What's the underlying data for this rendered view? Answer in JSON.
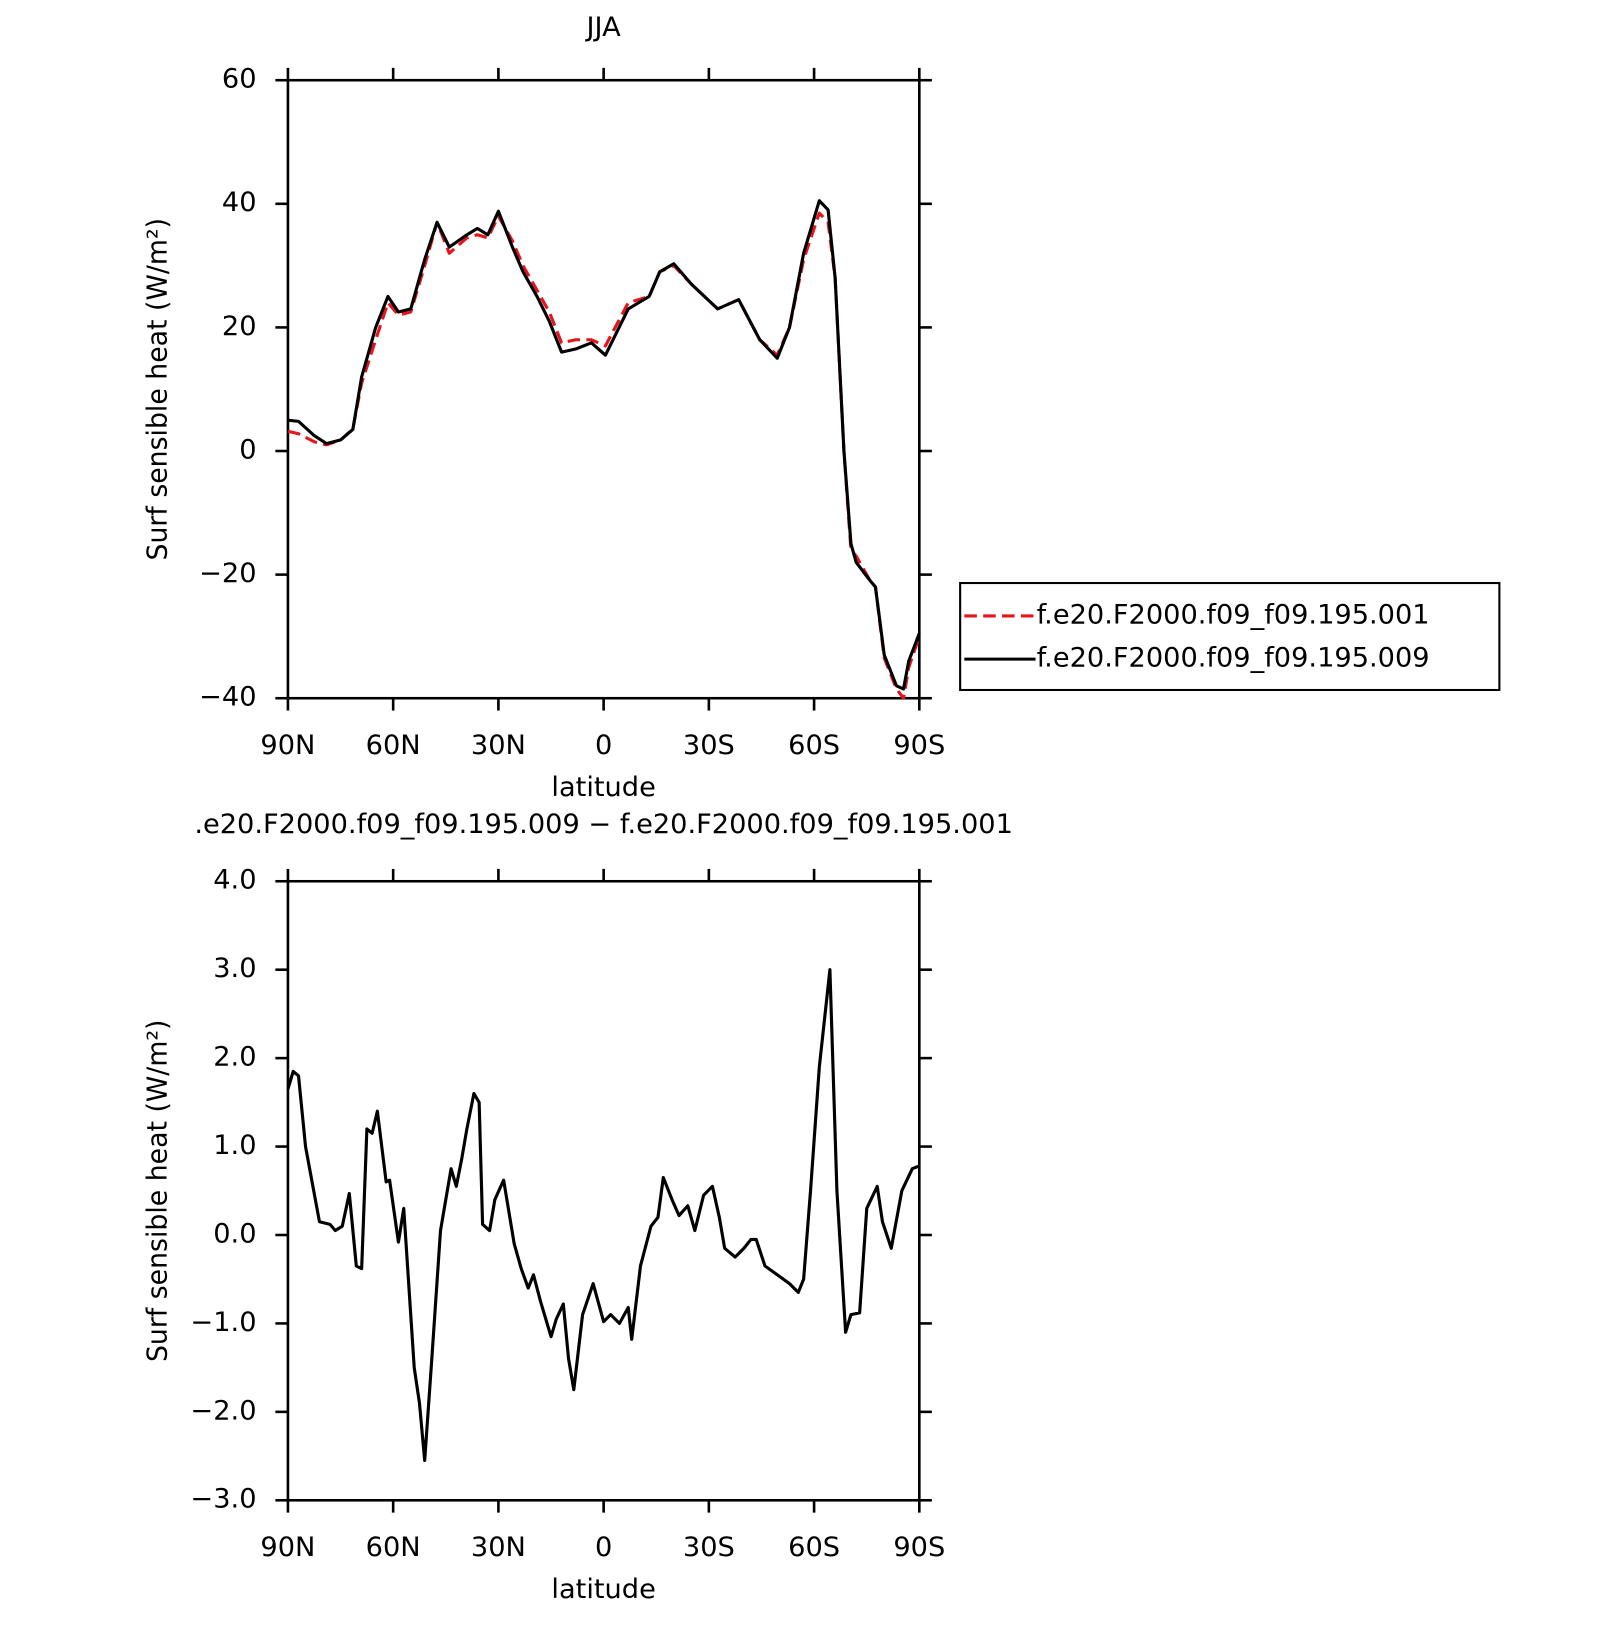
{
  "chart_data": [
    {
      "type": "line",
      "title": "JJA",
      "x_label": "latitude",
      "y_label": "Surf sensible heat (W/m²)",
      "xlim": [
        90,
        -90
      ],
      "ylim": [
        -40,
        60
      ],
      "xticks": [
        {
          "value": 90,
          "label": "90N"
        },
        {
          "value": 60,
          "label": "60N"
        },
        {
          "value": 30,
          "label": "30N"
        },
        0,
        {
          "value": -30,
          "label": "30S"
        },
        {
          "value": -60,
          "label": "60S"
        },
        {
          "value": -90,
          "label": "90S"
        }
      ],
      "yticks": [
        {
          "value": -40,
          "label": "−40"
        },
        {
          "value": -20,
          "label": "−20"
        },
        0,
        20,
        40,
        60
      ],
      "legend": "right",
      "x": [
        90,
        87,
        82.5,
        79,
        75,
        71.5,
        69,
        65,
        61.5,
        58.5,
        55,
        51,
        47.5,
        44,
        39,
        36,
        33,
        30,
        26,
        23,
        19,
        15.5,
        12,
        8,
        3.5,
        -0.5,
        -7,
        -13,
        -16,
        -20,
        -25,
        -32.5,
        -38.5,
        -44.5,
        -49.5,
        -53,
        -57,
        -61.5,
        -64,
        -66,
        -68.5,
        -70.5,
        -72,
        -76,
        -77.5,
        -80,
        -83.5,
        -85.5,
        -87,
        -90
      ],
      "series": [
        {
          "name": "f.e20.F2000.f09_f09.195.001",
          "color": "#e8141b",
          "dashed": true,
          "values": [
            3.2,
            2.8,
            1.5,
            1.0,
            1.8,
            3.6,
            11,
            18,
            24,
            22,
            22.5,
            30,
            37,
            32,
            34.5,
            35,
            34.5,
            38,
            34,
            30,
            26,
            22.5,
            17.5,
            18,
            18,
            17,
            24,
            25,
            29,
            30,
            27,
            23,
            24.5,
            18,
            15.5,
            20,
            31,
            38.5,
            37,
            28,
            0,
            -16,
            -17,
            -21,
            -22,
            -33.5,
            -38.5,
            -40,
            -35,
            -30
          ]
        },
        {
          "name": "f.e20.F2000.f09_f09.195.009",
          "color": "#000000",
          "dashed": false,
          "values": [
            5,
            4.8,
            2.5,
            1.2,
            1.8,
            3.5,
            12,
            20,
            25,
            22.5,
            23,
            31,
            37,
            33,
            35,
            36,
            35,
            38.8,
            33,
            29,
            25,
            21,
            16,
            16.5,
            17.5,
            15.5,
            23,
            25,
            29,
            30.3,
            27,
            23,
            24.5,
            18,
            15,
            20,
            32,
            40.5,
            39,
            28,
            0,
            -15,
            -18,
            -21,
            -22,
            -33,
            -38,
            -38.5,
            -34,
            -29.5
          ]
        }
      ]
    },
    {
      "type": "line",
      "title": ".e20.F2000.f09_f09.195.009 − f.e20.F2000.f09_f09.195.001",
      "x_label": "latitude",
      "y_label": "Surf sensible heat (W/m²)",
      "xlim": [
        90,
        -90
      ],
      "ylim": [
        -3,
        4
      ],
      "xticks": [
        {
          "value": 90,
          "label": "90N"
        },
        {
          "value": 60,
          "label": "60N"
        },
        {
          "value": 30,
          "label": "30N"
        },
        0,
        {
          "value": -30,
          "label": "30S"
        },
        {
          "value": -60,
          "label": "60S"
        },
        {
          "value": -90,
          "label": "90S"
        }
      ],
      "yticks": [
        {
          "value": -3,
          "label": "−3.0"
        },
        {
          "value": -2,
          "label": "−2.0"
        },
        {
          "value": -1,
          "label": "−1.0"
        },
        {
          "value": 0,
          "label": "0.0"
        },
        {
          "value": 1,
          "label": "1.0"
        },
        {
          "value": 2,
          "label": "2.0"
        },
        {
          "value": 3,
          "label": "3.0"
        },
        {
          "value": 4,
          "label": "4.0"
        }
      ],
      "color": "#000000",
      "x": [
        90,
        88.5,
        87,
        85,
        81,
        78,
        76.5,
        74.5,
        72.5,
        70.5,
        69,
        67.5,
        66,
        64.5,
        62,
        61,
        58.5,
        57,
        54,
        52.5,
        51,
        49,
        46.5,
        43.5,
        42,
        40.5,
        39,
        37,
        35.5,
        34.5,
        32.5,
        31,
        28.5,
        25.5,
        23.5,
        21.5,
        20,
        18,
        15,
        13.5,
        11.5,
        10,
        8.5,
        6,
        3,
        0,
        -2,
        -4.5,
        -7,
        -8,
        -10.5,
        -13.5,
        -15.5,
        -17,
        -19.5,
        -21.5,
        -24,
        -26,
        -28.5,
        -31,
        -33,
        -34.5,
        -37.5,
        -40,
        -42,
        -43.5,
        -46,
        -49.5,
        -53,
        -55.5,
        -57,
        -59,
        -61.5,
        -64.5,
        -66.5,
        -69,
        -70.5,
        -73,
        -75,
        -78,
        -79.5,
        -82,
        -85,
        -88,
        -90
      ],
      "values": [
        1.65,
        1.85,
        1.8,
        1.0,
        0.15,
        0.12,
        0.05,
        0.1,
        0.47,
        -0.35,
        -0.38,
        1.2,
        1.15,
        1.4,
        0.6,
        0.62,
        -0.08,
        0.3,
        -1.5,
        -1.9,
        -2.55,
        -1.4,
        0.05,
        0.75,
        0.55,
        0.85,
        1.2,
        1.6,
        1.5,
        0.12,
        0.05,
        0.4,
        0.62,
        -0.1,
        -0.38,
        -0.6,
        -0.45,
        -0.75,
        -1.15,
        -0.95,
        -0.78,
        -1.4,
        -1.75,
        -0.9,
        -0.55,
        -0.98,
        -0.9,
        -1.0,
        -0.82,
        -1.18,
        -0.35,
        0.1,
        0.2,
        0.65,
        0.4,
        0.22,
        0.33,
        0.05,
        0.45,
        0.55,
        0.2,
        -0.15,
        -0.25,
        -0.15,
        -0.05,
        -0.05,
        -0.35,
        -0.45,
        -0.55,
        -0.65,
        -0.5,
        0.5,
        1.9,
        3.0,
        0.5,
        -1.1,
        -0.9,
        -0.88,
        0.3,
        0.55,
        0.15,
        -0.15,
        0.5,
        0.75,
        0.78
      ]
    }
  ]
}
